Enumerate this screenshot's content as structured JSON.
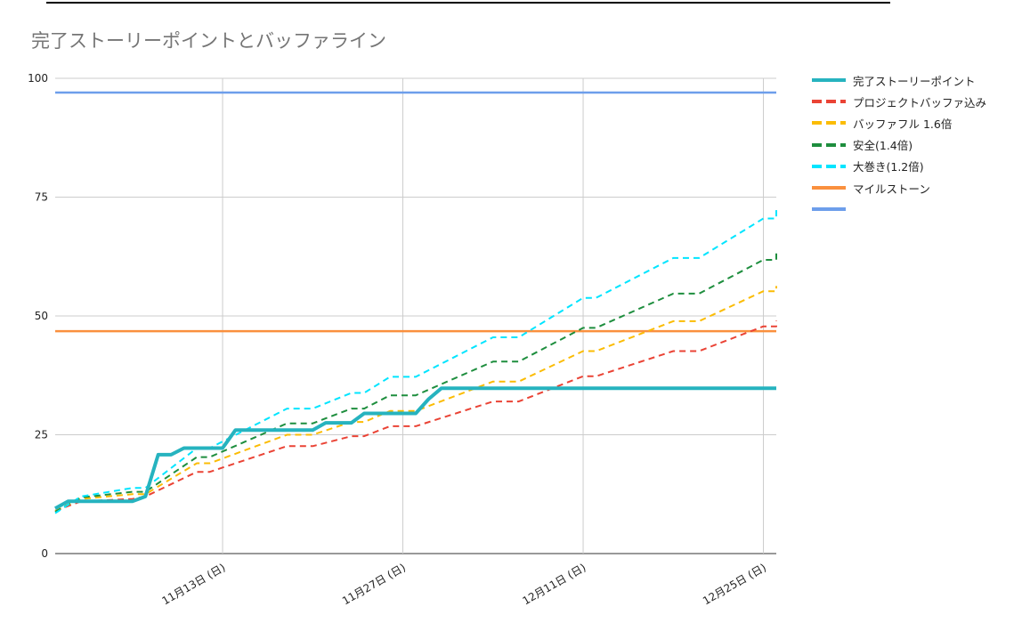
{
  "title": "完了ストーリーポイントとバッファライン",
  "chart_data": {
    "type": "line",
    "title": "完了ストーリーポイントとバッファライン",
    "xlabel": "",
    "ylabel": "",
    "ylim": [
      0,
      100
    ],
    "yticks": [
      0,
      25,
      50,
      75,
      100
    ],
    "xlim": [
      "2022-10-31",
      "2022-12-26"
    ],
    "xticks": [
      {
        "date": "2022-11-13",
        "label": "11月13日 (日)"
      },
      {
        "date": "2022-11-27",
        "label": "11月27日 (日)"
      },
      {
        "date": "2022-12-11",
        "label": "12月11日 (日)"
      },
      {
        "date": "2022-12-25",
        "label": "12月25日 (日)"
      }
    ],
    "grid": true,
    "legend_position": "right",
    "series": [
      {
        "name": "完了ストーリーポイント",
        "color": "#26b3bf",
        "dash": "solid",
        "width": 4,
        "points": [
          [
            "2022-10-31",
            9.5
          ],
          [
            "2022-11-01",
            11
          ],
          [
            "2022-11-02",
            11
          ],
          [
            "2022-11-03",
            11
          ],
          [
            "2022-11-04",
            11
          ],
          [
            "2022-11-05",
            11
          ],
          [
            "2022-11-06",
            11
          ],
          [
            "2022-11-07",
            12
          ],
          [
            "2022-11-08",
            20.8
          ],
          [
            "2022-11-09",
            20.8
          ],
          [
            "2022-11-10",
            22.2
          ],
          [
            "2022-11-11",
            22.2
          ],
          [
            "2022-11-12",
            22.2
          ],
          [
            "2022-11-13",
            22.2
          ],
          [
            "2022-11-14",
            26
          ],
          [
            "2022-11-15",
            26
          ],
          [
            "2022-11-16",
            26
          ],
          [
            "2022-11-17",
            26
          ],
          [
            "2022-11-18",
            26
          ],
          [
            "2022-11-19",
            26
          ],
          [
            "2022-11-20",
            26
          ],
          [
            "2022-11-21",
            27.5
          ],
          [
            "2022-11-22",
            27.5
          ],
          [
            "2022-11-23",
            27.5
          ],
          [
            "2022-11-24",
            29.5
          ],
          [
            "2022-11-25",
            29.5
          ],
          [
            "2022-11-26",
            29.5
          ],
          [
            "2022-11-27",
            29.5
          ],
          [
            "2022-11-28",
            29.5
          ],
          [
            "2022-11-29",
            32.5
          ],
          [
            "2022-11-30",
            34.8
          ],
          [
            "2022-12-01",
            34.8
          ],
          [
            "2022-12-26",
            34.8
          ]
        ]
      },
      {
        "name": "プロジェクトバッファ込み",
        "color": "#ea4335",
        "dash": "dashed",
        "width": 2,
        "points": [
          [
            "2022-10-31",
            9
          ],
          [
            "2022-11-02",
            11
          ],
          [
            "2022-11-06",
            11.5
          ],
          [
            "2022-11-07",
            12
          ],
          [
            "2022-11-11",
            17.2
          ],
          [
            "2022-11-12",
            17.2
          ],
          [
            "2022-11-18",
            22.6
          ],
          [
            "2022-11-20",
            22.6
          ],
          [
            "2022-11-23",
            24.7
          ],
          [
            "2022-11-24",
            24.7
          ],
          [
            "2022-11-26",
            26.8
          ],
          [
            "2022-11-28",
            26.8
          ],
          [
            "2022-12-04",
            32
          ],
          [
            "2022-12-06",
            32
          ],
          [
            "2022-12-11",
            37.3
          ],
          [
            "2022-12-12",
            37.3
          ],
          [
            "2022-12-18",
            42.6
          ],
          [
            "2022-12-20",
            42.6
          ],
          [
            "2022-12-25",
            47.8
          ],
          [
            "2022-12-26",
            47.8
          ],
          [
            "2022-12-26",
            49
          ]
        ]
      },
      {
        "name": "バッファフル 1.6倍",
        "color": "#fbbc04",
        "dash": "dashed",
        "width": 2,
        "points": [
          [
            "2022-10-31",
            9
          ],
          [
            "2022-11-02",
            11.5
          ],
          [
            "2022-11-06",
            12.5
          ],
          [
            "2022-11-07",
            12.5
          ],
          [
            "2022-11-11",
            19
          ],
          [
            "2022-11-12",
            19
          ],
          [
            "2022-11-18",
            25
          ],
          [
            "2022-11-20",
            25
          ],
          [
            "2022-11-23",
            27.7
          ],
          [
            "2022-11-24",
            27.7
          ],
          [
            "2022-11-26",
            30
          ],
          [
            "2022-11-28",
            30
          ],
          [
            "2022-12-04",
            36.2
          ],
          [
            "2022-12-06",
            36.2
          ],
          [
            "2022-12-11",
            42.6
          ],
          [
            "2022-12-12",
            42.6
          ],
          [
            "2022-12-18",
            48.9
          ],
          [
            "2022-12-20",
            48.9
          ],
          [
            "2022-12-25",
            55.2
          ],
          [
            "2022-12-26",
            55.2
          ],
          [
            "2022-12-26",
            56.3
          ]
        ]
      },
      {
        "name": "安全(1.4倍)",
        "color": "#1e8e3e",
        "dash": "dashed",
        "width": 2,
        "points": [
          [
            "2022-10-31",
            8.8
          ],
          [
            "2022-11-02",
            11.8
          ],
          [
            "2022-11-06",
            13
          ],
          [
            "2022-11-07",
            13
          ],
          [
            "2022-11-11",
            20.3
          ],
          [
            "2022-11-12",
            20.3
          ],
          [
            "2022-11-18",
            27.4
          ],
          [
            "2022-11-20",
            27.4
          ],
          [
            "2022-11-23",
            30.5
          ],
          [
            "2022-11-24",
            30.5
          ],
          [
            "2022-11-26",
            33.3
          ],
          [
            "2022-11-28",
            33.3
          ],
          [
            "2022-12-04",
            40.4
          ],
          [
            "2022-12-06",
            40.4
          ],
          [
            "2022-12-11",
            47.5
          ],
          [
            "2022-12-12",
            47.5
          ],
          [
            "2022-12-18",
            54.7
          ],
          [
            "2022-12-20",
            54.7
          ],
          [
            "2022-12-25",
            61.8
          ],
          [
            "2022-12-26",
            61.8
          ],
          [
            "2022-12-26",
            63.3
          ]
        ]
      },
      {
        "name": "大巻き(1.2倍)",
        "color": "#00e5ff",
        "dash": "dashed",
        "width": 2,
        "points": [
          [
            "2022-10-31",
            8.5
          ],
          [
            "2022-11-02",
            12
          ],
          [
            "2022-11-06",
            13.8
          ],
          [
            "2022-11-07",
            13.8
          ],
          [
            "2022-11-11",
            22.2
          ],
          [
            "2022-11-12",
            22.2
          ],
          [
            "2022-11-18",
            30.5
          ],
          [
            "2022-11-20",
            30.5
          ],
          [
            "2022-11-23",
            33.8
          ],
          [
            "2022-11-24",
            33.8
          ],
          [
            "2022-11-26",
            37.2
          ],
          [
            "2022-11-28",
            37.2
          ],
          [
            "2022-12-04",
            45.5
          ],
          [
            "2022-12-06",
            45.5
          ],
          [
            "2022-12-11",
            53.8
          ],
          [
            "2022-12-12",
            53.8
          ],
          [
            "2022-12-18",
            62.2
          ],
          [
            "2022-12-20",
            62.2
          ],
          [
            "2022-12-25",
            70.5
          ],
          [
            "2022-12-26",
            70.5
          ],
          [
            "2022-12-26",
            72.3
          ]
        ]
      },
      {
        "name": "マイルストーン",
        "color": "#fa903e",
        "dash": "solid",
        "width": 2.5,
        "points": [
          [
            "2022-10-31",
            46.8
          ],
          [
            "2022-12-26",
            46.8
          ]
        ]
      },
      {
        "name": "",
        "color": "#6d9eeb",
        "dash": "solid",
        "width": 2.5,
        "points": [
          [
            "2022-10-31",
            97
          ],
          [
            "2022-12-26",
            97
          ]
        ]
      }
    ]
  }
}
